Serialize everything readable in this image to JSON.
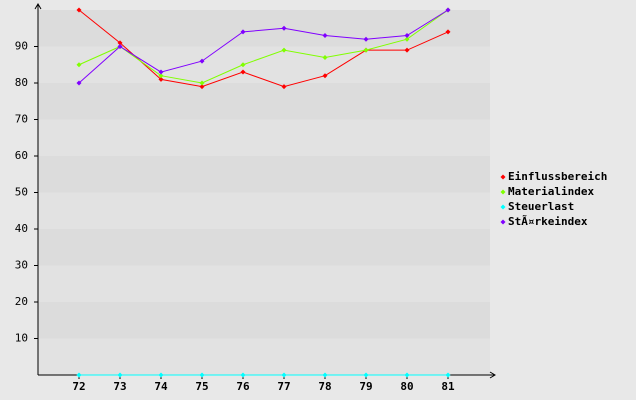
{
  "chart_data": {
    "type": "line",
    "categories": [
      "72",
      "73",
      "74",
      "75",
      "76",
      "77",
      "78",
      "79",
      "80",
      "81"
    ],
    "series": [
      {
        "name": "Einflussbereich",
        "color": "#ff0000",
        "values": [
          100,
          91,
          81,
          79,
          83,
          79,
          82,
          89,
          89,
          94
        ]
      },
      {
        "name": "Materialindex",
        "color": "#80ff00",
        "values": [
          85,
          90,
          82,
          80,
          85,
          89,
          87,
          89,
          92,
          100
        ]
      },
      {
        "name": "Steuerlast",
        "color": "#00ffff",
        "values": [
          0,
          0,
          0,
          0,
          0,
          0,
          0,
          0,
          0,
          0
        ]
      },
      {
        "name": "StÃ¤rkeindex",
        "color": "#8000ff",
        "values": [
          80,
          90,
          83,
          86,
          94,
          95,
          93,
          92,
          93,
          100
        ]
      }
    ],
    "ylim": [
      0,
      100
    ],
    "yticks": [
      10,
      20,
      30,
      40,
      50,
      60,
      70,
      80,
      90
    ],
    "grid": true,
    "legend": "right"
  }
}
